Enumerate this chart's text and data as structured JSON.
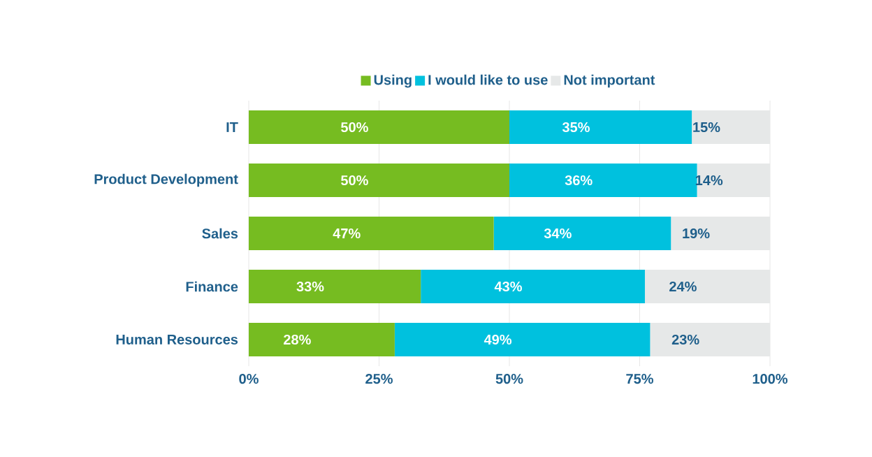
{
  "chart_data": {
    "type": "bar",
    "orientation": "horizontal",
    "stacked": true,
    "categories": [
      "IT",
      "Product Development",
      "Sales",
      "Finance",
      "Human Resources"
    ],
    "series": [
      {
        "name": "Using",
        "color": "#76bc21",
        "values": [
          50,
          50,
          47,
          33,
          28
        ],
        "value_labels": [
          "50%",
          "50%",
          "47%",
          "33%",
          "28%"
        ]
      },
      {
        "name": "I would like to use",
        "color": "#00c1de",
        "values": [
          35,
          36,
          34,
          43,
          49
        ],
        "value_labels": [
          "35%",
          "36%",
          "34%",
          "43%",
          "49%"
        ]
      },
      {
        "name": "Not important",
        "color": "#e6e8e8",
        "values": [
          15,
          14,
          19,
          24,
          23
        ],
        "value_labels": [
          "15%",
          "14%",
          "19%",
          "24%",
          "23%"
        ]
      }
    ],
    "xlim": [
      0,
      100
    ],
    "xticks": [
      {
        "value": 0,
        "label": "0%"
      },
      {
        "value": 25,
        "label": "25%"
      },
      {
        "value": 50,
        "label": "50%"
      },
      {
        "value": 75,
        "label": "75%"
      },
      {
        "value": 100,
        "label": "100%"
      }
    ],
    "grid": "x",
    "legend": "top"
  }
}
